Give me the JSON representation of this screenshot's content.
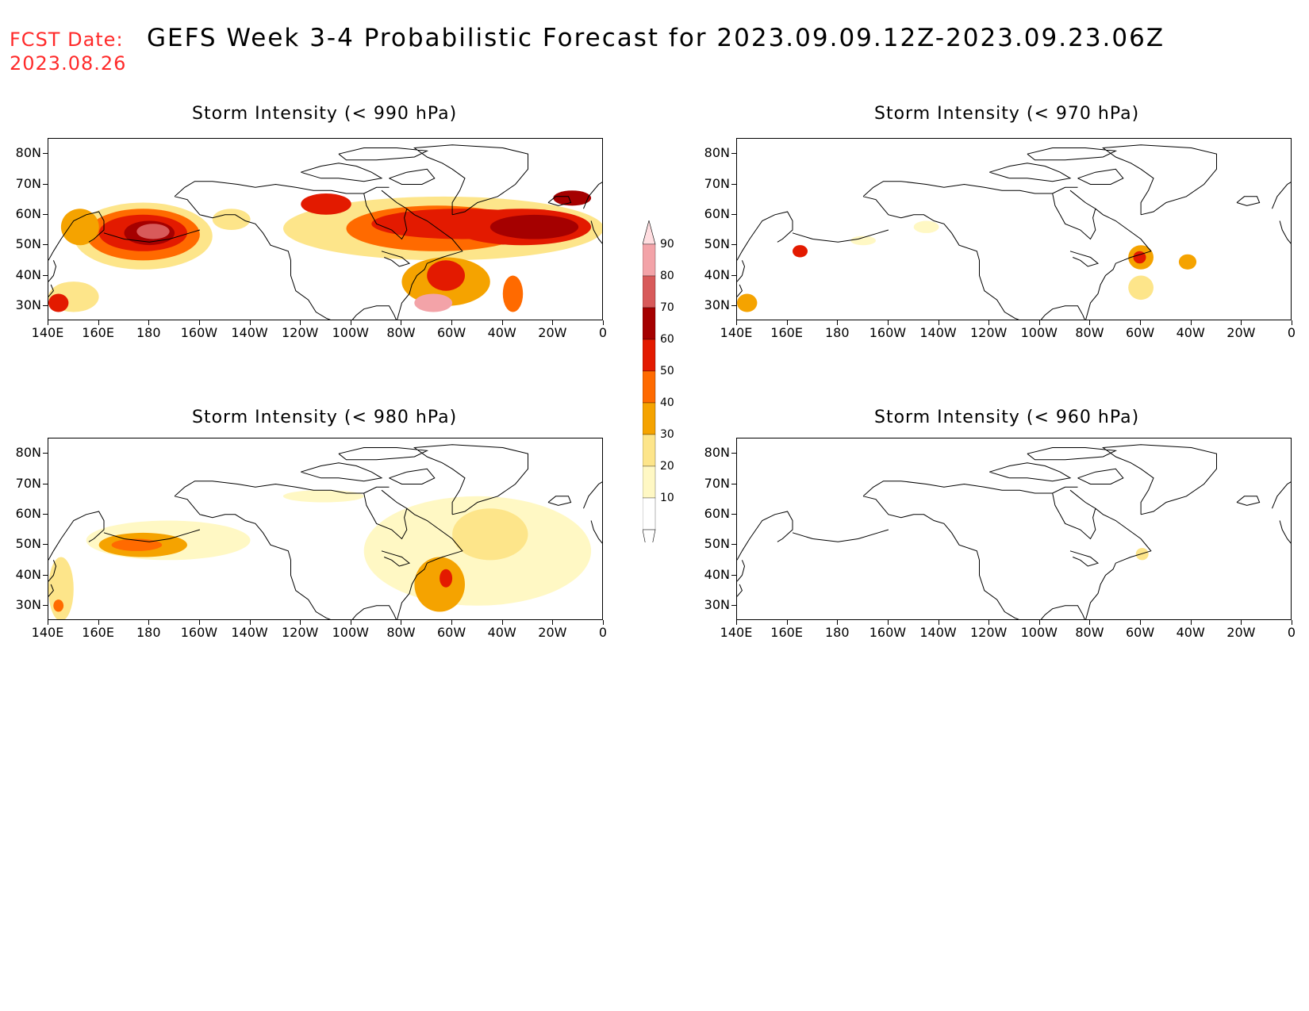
{
  "header": {
    "fcst_label": "FCST Date:",
    "fcst_date": "2023.08.26",
    "title": "GEFS Week 3-4 Probabilistic Forecast for 2023.09.09.12Z-2023.09.23.06Z"
  },
  "axes": {
    "lat_labels": [
      "80N",
      "70N",
      "60N",
      "50N",
      "40N",
      "30N"
    ],
    "lon_labels": [
      "140E",
      "160E",
      "180",
      "160W",
      "140W",
      "120W",
      "100W",
      "80W",
      "60W",
      "40W",
      "20W",
      "0"
    ]
  },
  "colors": {
    "p10": "#fff8c4",
    "p20": "#fde58a",
    "p30": "#f5a300",
    "p40": "#ff6a00",
    "p50": "#e31a00",
    "p60": "#a50000",
    "p70": "#d85a5a",
    "p80": "#f3a3a8",
    "p90": "#ffdde0",
    "title_red": "#ff2a2a"
  },
  "colorbar": {
    "levels": [
      "10",
      "20",
      "30",
      "40",
      "50",
      "60",
      "70",
      "80",
      "90"
    ]
  },
  "panels": [
    {
      "id": "p990",
      "title": "Storm Intensity (< 990 hPa)"
    },
    {
      "id": "p970",
      "title": "Storm Intensity (< 970 hPa)"
    },
    {
      "id": "p980",
      "title": "Storm Intensity (< 980 hPa)"
    },
    {
      "id": "p960",
      "title": "Storm Intensity (< 960 hPa)"
    }
  ]
}
